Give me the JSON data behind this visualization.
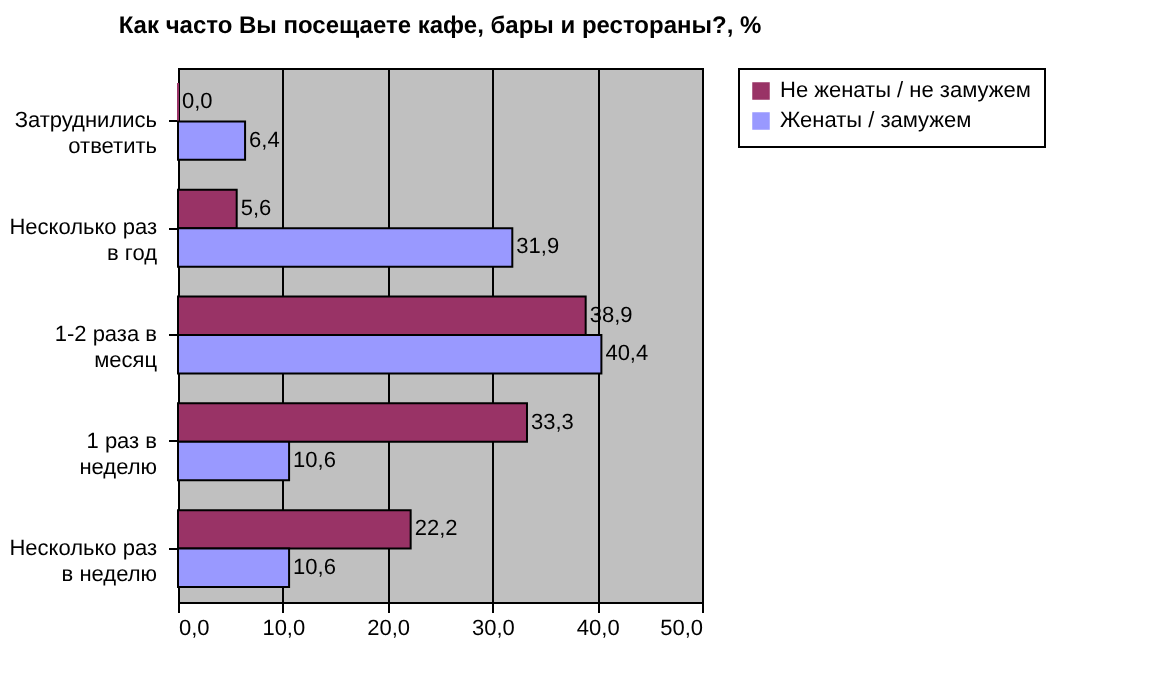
{
  "chart_data": {
    "type": "bar",
    "orientation": "horizontal",
    "title": "Как часто Вы посещаете кафе, бары и рестораны?, %",
    "categories": [
      "Затруднились ответить",
      "Несколько раз в год",
      "1-2 раза в месяц",
      "1 раз в неделю",
      "Несколько раз в неделю"
    ],
    "series": [
      {
        "name": "Не женаты / не замужем",
        "color": "#993366",
        "values": [
          0.0,
          5.6,
          38.9,
          33.3,
          22.2
        ],
        "value_labels": [
          "0,0",
          "5,6",
          "38,9",
          "33,3",
          "22,2"
        ]
      },
      {
        "name": "Женаты / замужем",
        "color": "#9999ff",
        "values": [
          6.4,
          31.9,
          40.4,
          10.6,
          10.6
        ],
        "value_labels": [
          "6,4",
          "31,9",
          "40,4",
          "10,6",
          "10,6"
        ]
      }
    ],
    "xlim": [
      0,
      50
    ],
    "xticks": [
      {
        "value": 0,
        "label": "0,0"
      },
      {
        "value": 10,
        "label": "10,0"
      },
      {
        "value": 20,
        "label": "20,0"
      },
      {
        "value": 30,
        "label": "30,0"
      },
      {
        "value": 40,
        "label": "40,0"
      },
      {
        "value": 50,
        "label": "50,0"
      }
    ],
    "grid": "x",
    "legend": "right"
  }
}
